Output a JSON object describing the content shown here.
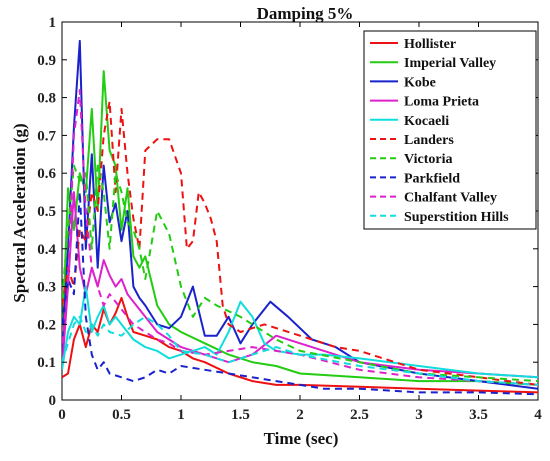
{
  "chart_data": {
    "type": "line",
    "title": "Damping 5%",
    "xlabel": "Time (sec)",
    "ylabel": "Spectral Acceleration (g)",
    "xlim": [
      0,
      4
    ],
    "ylim": [
      0,
      1
    ],
    "x_ticks": [
      "0",
      "0.5",
      "1",
      "1.5",
      "2",
      "2.5",
      "3",
      "3.5",
      "4"
    ],
    "y_ticks": [
      "0",
      "0.1",
      "0.2",
      "0.3",
      "0.4",
      "0.5",
      "0.6",
      "0.7",
      "0.8",
      "0.9",
      "1"
    ],
    "grid": false,
    "legend_position": "top-right",
    "series": [
      {
        "name": "Hollister",
        "color": "#ee1111",
        "dash": "solid",
        "x": [
          0.0,
          0.05,
          0.1,
          0.15,
          0.2,
          0.25,
          0.3,
          0.35,
          0.4,
          0.45,
          0.5,
          0.55,
          0.6,
          0.7,
          0.8,
          0.9,
          1.0,
          1.1,
          1.2,
          1.4,
          1.6,
          1.8,
          2.0,
          2.5,
          3.0,
          3.5,
          4.0
        ],
        "y": [
          0.06,
          0.07,
          0.16,
          0.2,
          0.14,
          0.2,
          0.18,
          0.24,
          0.2,
          0.23,
          0.27,
          0.22,
          0.18,
          0.17,
          0.16,
          0.14,
          0.13,
          0.11,
          0.1,
          0.07,
          0.05,
          0.04,
          0.04,
          0.035,
          0.03,
          0.025,
          0.02
        ]
      },
      {
        "name": "Imperial Valley",
        "color": "#22cc11",
        "dash": "solid",
        "x": [
          0.0,
          0.05,
          0.1,
          0.15,
          0.2,
          0.25,
          0.3,
          0.35,
          0.4,
          0.45,
          0.5,
          0.55,
          0.6,
          0.65,
          0.7,
          0.8,
          0.9,
          1.0,
          1.2,
          1.4,
          1.6,
          1.8,
          2.0,
          2.5,
          3.0,
          3.5,
          4.0
        ],
        "y": [
          0.13,
          0.56,
          0.45,
          0.6,
          0.55,
          0.77,
          0.5,
          0.87,
          0.66,
          0.62,
          0.45,
          0.56,
          0.38,
          0.35,
          0.38,
          0.25,
          0.2,
          0.18,
          0.15,
          0.12,
          0.1,
          0.09,
          0.07,
          0.06,
          0.05,
          0.05,
          0.04
        ]
      },
      {
        "name": "Kobe",
        "color": "#1a22cc",
        "dash": "solid",
        "x": [
          0.0,
          0.05,
          0.1,
          0.15,
          0.2,
          0.25,
          0.3,
          0.35,
          0.4,
          0.45,
          0.5,
          0.55,
          0.6,
          0.65,
          0.7,
          0.8,
          0.9,
          1.0,
          1.1,
          1.2,
          1.3,
          1.4,
          1.5,
          1.6,
          1.75,
          1.9,
          2.1,
          2.3,
          2.5,
          3.0,
          3.5,
          4.0
        ],
        "y": [
          0.12,
          0.4,
          0.72,
          0.95,
          0.4,
          0.65,
          0.35,
          0.62,
          0.47,
          0.52,
          0.42,
          0.5,
          0.3,
          0.27,
          0.25,
          0.2,
          0.19,
          0.22,
          0.3,
          0.17,
          0.17,
          0.22,
          0.15,
          0.2,
          0.26,
          0.22,
          0.16,
          0.14,
          0.1,
          0.07,
          0.05,
          0.03
        ]
      },
      {
        "name": "Loma Prieta",
        "color": "#dd22cc",
        "dash": "solid",
        "x": [
          0.0,
          0.05,
          0.1,
          0.15,
          0.2,
          0.25,
          0.3,
          0.35,
          0.4,
          0.45,
          0.5,
          0.55,
          0.6,
          0.7,
          0.8,
          0.9,
          1.0,
          1.2,
          1.4,
          1.6,
          1.8,
          2.0,
          2.5,
          3.0,
          3.5,
          4.0
        ],
        "y": [
          0.08,
          0.3,
          0.55,
          0.35,
          0.28,
          0.35,
          0.3,
          0.37,
          0.33,
          0.3,
          0.32,
          0.28,
          0.26,
          0.22,
          0.18,
          0.16,
          0.14,
          0.12,
          0.1,
          0.12,
          0.17,
          0.15,
          0.1,
          0.08,
          0.07,
          0.06
        ]
      },
      {
        "name": "Kocaeli",
        "color": "#11dddd",
        "dash": "solid",
        "x": [
          0.0,
          0.05,
          0.1,
          0.15,
          0.2,
          0.25,
          0.3,
          0.35,
          0.4,
          0.45,
          0.5,
          0.55,
          0.6,
          0.7,
          0.8,
          0.9,
          1.0,
          1.1,
          1.2,
          1.3,
          1.4,
          1.5,
          1.6,
          1.7,
          1.8,
          2.0,
          2.2,
          2.5,
          3.0,
          3.5,
          4.0
        ],
        "y": [
          0.08,
          0.18,
          0.22,
          0.2,
          0.3,
          0.18,
          0.22,
          0.25,
          0.2,
          0.22,
          0.2,
          0.18,
          0.16,
          0.14,
          0.13,
          0.11,
          0.12,
          0.13,
          0.14,
          0.12,
          0.18,
          0.26,
          0.22,
          0.15,
          0.13,
          0.12,
          0.12,
          0.11,
          0.09,
          0.07,
          0.06
        ]
      },
      {
        "name": "Landers",
        "color": "#ee1111",
        "dash": "dashed",
        "x": [
          0.0,
          0.05,
          0.1,
          0.15,
          0.2,
          0.25,
          0.3,
          0.35,
          0.4,
          0.45,
          0.5,
          0.55,
          0.6,
          0.65,
          0.7,
          0.8,
          0.9,
          1.0,
          1.05,
          1.1,
          1.15,
          1.2,
          1.25,
          1.3,
          1.35,
          1.4,
          1.5,
          1.7,
          2.0,
          2.3,
          2.5,
          3.0,
          3.5,
          4.0
        ],
        "y": [
          0.25,
          0.35,
          0.3,
          0.45,
          0.42,
          0.55,
          0.5,
          0.7,
          0.79,
          0.55,
          0.77,
          0.6,
          0.48,
          0.4,
          0.66,
          0.69,
          0.69,
          0.6,
          0.4,
          0.42,
          0.55,
          0.52,
          0.48,
          0.42,
          0.25,
          0.2,
          0.18,
          0.2,
          0.17,
          0.14,
          0.13,
          0.08,
          0.06,
          0.04
        ]
      },
      {
        "name": "Victoria",
        "color": "#22cc11",
        "dash": "dashed",
        "x": [
          0.0,
          0.05,
          0.1,
          0.15,
          0.2,
          0.25,
          0.3,
          0.35,
          0.4,
          0.45,
          0.5,
          0.55,
          0.6,
          0.65,
          0.7,
          0.8,
          0.9,
          1.0,
          1.1,
          1.2,
          1.3,
          1.5,
          1.8,
          2.0,
          2.5,
          3.0,
          3.5,
          4.0
        ],
        "y": [
          0.27,
          0.45,
          0.62,
          0.58,
          0.6,
          0.4,
          0.62,
          0.55,
          0.4,
          0.6,
          0.55,
          0.47,
          0.45,
          0.4,
          0.32,
          0.5,
          0.44,
          0.3,
          0.22,
          0.27,
          0.25,
          0.22,
          0.16,
          0.13,
          0.1,
          0.07,
          0.06,
          0.05
        ]
      },
      {
        "name": "Parkfield",
        "color": "#1a22cc",
        "dash": "dashed",
        "x": [
          0.0,
          0.05,
          0.1,
          0.15,
          0.2,
          0.25,
          0.3,
          0.35,
          0.4,
          0.5,
          0.6,
          0.7,
          0.8,
          0.9,
          1.0,
          1.2,
          1.4,
          1.6,
          1.8,
          2.0,
          2.2,
          2.5,
          3.0,
          3.5,
          4.0
        ],
        "y": [
          0.2,
          0.32,
          0.28,
          0.55,
          0.22,
          0.12,
          0.08,
          0.1,
          0.07,
          0.06,
          0.05,
          0.06,
          0.08,
          0.07,
          0.09,
          0.08,
          0.07,
          0.06,
          0.05,
          0.04,
          0.03,
          0.03,
          0.02,
          0.02,
          0.015
        ]
      },
      {
        "name": "Chalfant Valley",
        "color": "#dd22cc",
        "dash": "dashed",
        "x": [
          0.0,
          0.05,
          0.1,
          0.15,
          0.2,
          0.25,
          0.3,
          0.35,
          0.4,
          0.5,
          0.6,
          0.7,
          0.8,
          0.9,
          1.0,
          1.2,
          1.4,
          1.6,
          1.8,
          2.0,
          2.5,
          3.0,
          3.5,
          4.0
        ],
        "y": [
          0.15,
          0.3,
          0.7,
          0.82,
          0.5,
          0.35,
          0.3,
          0.25,
          0.28,
          0.24,
          0.2,
          0.18,
          0.16,
          0.15,
          0.13,
          0.12,
          0.13,
          0.14,
          0.13,
          0.12,
          0.08,
          0.06,
          0.05,
          0.04
        ]
      },
      {
        "name": "Superstition Hills",
        "color": "#11dddd",
        "dash": "dashed",
        "x": [
          0.0,
          0.05,
          0.1,
          0.15,
          0.2,
          0.25,
          0.3,
          0.35,
          0.4,
          0.5,
          0.6,
          0.7,
          0.8,
          0.9,
          1.0,
          1.2,
          1.4,
          1.6,
          1.8,
          2.0,
          2.5,
          3.0,
          3.5,
          4.0
        ],
        "y": [
          0.1,
          0.15,
          0.2,
          0.22,
          0.18,
          0.2,
          0.17,
          0.2,
          0.18,
          0.17,
          0.2,
          0.22,
          0.2,
          0.17,
          0.13,
          0.12,
          0.1,
          0.12,
          0.14,
          0.12,
          0.09,
          0.07,
          0.05,
          0.04
        ]
      }
    ]
  }
}
